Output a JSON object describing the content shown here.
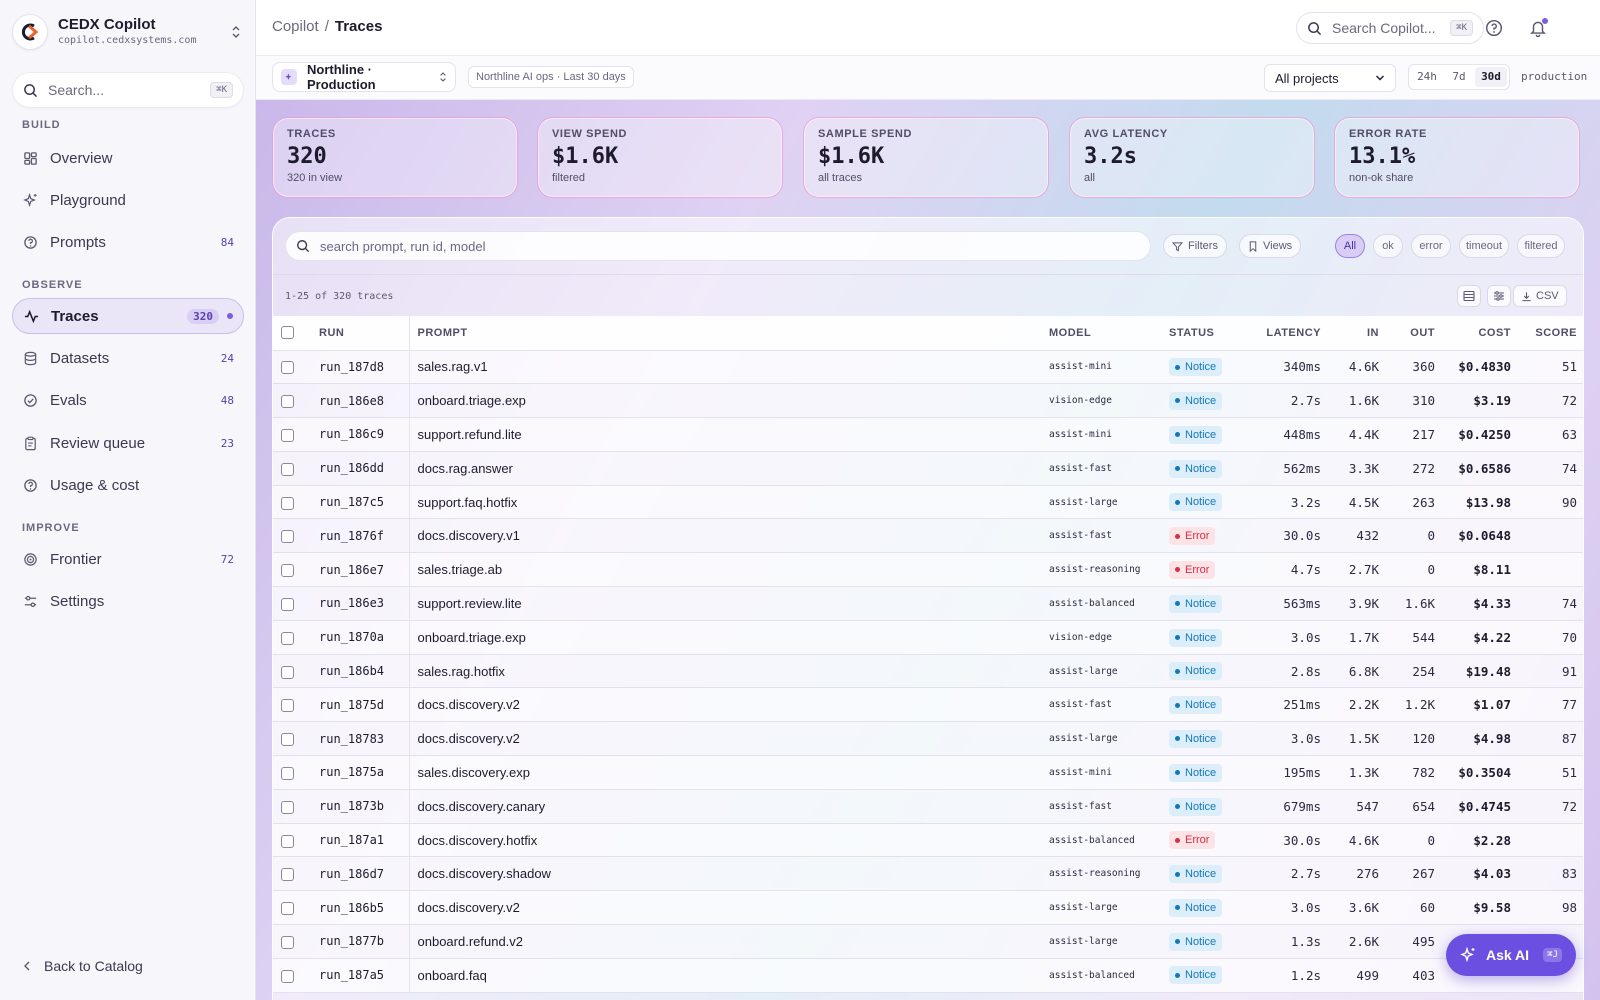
{
  "brand": {
    "name": "CEDX Copilot",
    "url": "copilot.cedxsystems.com"
  },
  "sidebar": {
    "search_placeholder": "Search...",
    "search_kbd": "⌘K",
    "sections": {
      "build": "BUILD",
      "observe": "OBSERVE",
      "improve": "IMPROVE"
    },
    "items": [
      {
        "label": "Overview",
        "count": ""
      },
      {
        "label": "Playground",
        "count": ""
      },
      {
        "label": "Prompts",
        "count": "84"
      },
      {
        "label": "Traces",
        "count": "320"
      },
      {
        "label": "Datasets",
        "count": "24"
      },
      {
        "label": "Evals",
        "count": "48"
      },
      {
        "label": "Review queue",
        "count": "23"
      },
      {
        "label": "Usage & cost",
        "count": ""
      },
      {
        "label": "Frontier",
        "count": "72"
      },
      {
        "label": "Settings",
        "count": ""
      }
    ],
    "back": "Back to Catalog"
  },
  "header": {
    "crumb_root": "Copilot",
    "crumb_sep": "/",
    "crumb_current": "Traces",
    "search_placeholder": "Search Copilot...",
    "search_kbd": "⌘K"
  },
  "filterbar": {
    "env": "Northline · Production",
    "meta": "Northline AI ops · Last 30 days",
    "project": "All projects",
    "ranges": [
      "24h",
      "7d",
      "30d"
    ],
    "selected_range": "30d",
    "env_tag": "production"
  },
  "stats": [
    {
      "label": "TRACES",
      "value": "320",
      "sub": "320 in view"
    },
    {
      "label": "VIEW SPEND",
      "value": "$1.6K",
      "sub": "filtered"
    },
    {
      "label": "SAMPLE SPEND",
      "value": "$1.6K",
      "sub": "all traces"
    },
    {
      "label": "AVG LATENCY",
      "value": "3.2s",
      "sub": "all"
    },
    {
      "label": "ERROR RATE",
      "value": "13.1%",
      "sub": "non-ok share"
    }
  ],
  "panel": {
    "search_placeholder": "search prompt, run id, model",
    "filters_label": "Filters",
    "views_label": "Views",
    "chips": [
      "All",
      "ok",
      "error",
      "timeout",
      "filtered"
    ],
    "count_text": "1-25 of 320 traces",
    "csv_label": "CSV"
  },
  "table": {
    "columns": [
      "RUN",
      "PROMPT",
      "MODEL",
      "STATUS",
      "LATENCY",
      "IN",
      "OUT",
      "COST",
      "SCORE"
    ],
    "rows": [
      {
        "run": "run_187d8",
        "prompt": "sales.rag.v1",
        "model": "assist-mini",
        "status": "Notice",
        "latency": "340ms",
        "slow": false,
        "in": "4.6K",
        "out": "360",
        "cost": "$0.4830",
        "score": "51"
      },
      {
        "run": "run_186e8",
        "prompt": "onboard.triage.exp",
        "model": "vision-edge",
        "status": "Notice",
        "latency": "2.7s",
        "slow": false,
        "in": "1.6K",
        "out": "310",
        "cost": "$3.19",
        "score": "72"
      },
      {
        "run": "run_186c9",
        "prompt": "support.refund.lite",
        "model": "assist-mini",
        "status": "Notice",
        "latency": "448ms",
        "slow": false,
        "in": "4.4K",
        "out": "217",
        "cost": "$0.4250",
        "score": "63"
      },
      {
        "run": "run_186dd",
        "prompt": "docs.rag.answer",
        "model": "assist-fast",
        "status": "Notice",
        "latency": "562ms",
        "slow": false,
        "in": "3.3K",
        "out": "272",
        "cost": "$0.6586",
        "score": "74"
      },
      {
        "run": "run_187c5",
        "prompt": "support.faq.hotfix",
        "model": "assist-large",
        "status": "Notice",
        "latency": "3.2s",
        "slow": true,
        "in": "4.5K",
        "out": "263",
        "cost": "$13.98",
        "score": "90"
      },
      {
        "run": "run_1876f",
        "prompt": "docs.discovery.v1",
        "model": "assist-fast",
        "status": "Error",
        "latency": "30.0s",
        "slow": true,
        "in": "432",
        "out": "0",
        "cost": "$0.0648",
        "score": ""
      },
      {
        "run": "run_186e7",
        "prompt": "sales.triage.ab",
        "model": "assist-reasoning",
        "status": "Error",
        "latency": "4.7s",
        "slow": true,
        "in": "2.7K",
        "out": "0",
        "cost": "$8.11",
        "score": ""
      },
      {
        "run": "run_186e3",
        "prompt": "support.review.lite",
        "model": "assist-balanced",
        "status": "Notice",
        "latency": "563ms",
        "slow": false,
        "in": "3.9K",
        "out": "1.6K",
        "cost": "$4.33",
        "score": "74"
      },
      {
        "run": "run_1870a",
        "prompt": "onboard.triage.exp",
        "model": "vision-edge",
        "status": "Notice",
        "latency": "3.0s",
        "slow": false,
        "in": "1.7K",
        "out": "544",
        "cost": "$4.22",
        "score": "70"
      },
      {
        "run": "run_186b4",
        "prompt": "sales.rag.hotfix",
        "model": "assist-large",
        "status": "Notice",
        "latency": "2.8s",
        "slow": false,
        "in": "6.8K",
        "out": "254",
        "cost": "$19.48",
        "score": "91"
      },
      {
        "run": "run_1875d",
        "prompt": "docs.discovery.v2",
        "model": "assist-fast",
        "status": "Notice",
        "latency": "251ms",
        "slow": false,
        "in": "2.2K",
        "out": "1.2K",
        "cost": "$1.07",
        "score": "77"
      },
      {
        "run": "run_18783",
        "prompt": "docs.discovery.v2",
        "model": "assist-large",
        "status": "Notice",
        "latency": "3.0s",
        "slow": false,
        "in": "1.5K",
        "out": "120",
        "cost": "$4.98",
        "score": "87"
      },
      {
        "run": "run_1875a",
        "prompt": "sales.discovery.exp",
        "model": "assist-mini",
        "status": "Notice",
        "latency": "195ms",
        "slow": false,
        "in": "1.3K",
        "out": "782",
        "cost": "$0.3504",
        "score": "51"
      },
      {
        "run": "run_1873b",
        "prompt": "docs.discovery.canary",
        "model": "assist-fast",
        "status": "Notice",
        "latency": "679ms",
        "slow": false,
        "in": "547",
        "out": "654",
        "cost": "$0.4745",
        "score": "72"
      },
      {
        "run": "run_187a1",
        "prompt": "docs.discovery.hotfix",
        "model": "assist-balanced",
        "status": "Error",
        "latency": "30.0s",
        "slow": true,
        "in": "4.6K",
        "out": "0",
        "cost": "$2.28",
        "score": ""
      },
      {
        "run": "run_186d7",
        "prompt": "docs.discovery.shadow",
        "model": "assist-reasoning",
        "status": "Notice",
        "latency": "2.7s",
        "slow": false,
        "in": "276",
        "out": "267",
        "cost": "$4.03",
        "score": "83"
      },
      {
        "run": "run_186b5",
        "prompt": "docs.discovery.v2",
        "model": "assist-large",
        "status": "Notice",
        "latency": "3.0s",
        "slow": true,
        "in": "3.6K",
        "out": "60",
        "cost": "$9.58",
        "score": "98"
      },
      {
        "run": "run_1877b",
        "prompt": "onboard.refund.v2",
        "model": "assist-large",
        "status": "Notice",
        "latency": "1.3s",
        "slow": false,
        "in": "2.6K",
        "out": "495",
        "cost": "",
        "score": ""
      },
      {
        "run": "run_187a5",
        "prompt": "onboard.faq",
        "model": "assist-balanced",
        "status": "Notice",
        "latency": "1.2s",
        "slow": false,
        "in": "499",
        "out": "403",
        "cost": "",
        "score": ""
      }
    ]
  },
  "ask_ai": {
    "label": "Ask AI",
    "kbd": "⌘J"
  }
}
